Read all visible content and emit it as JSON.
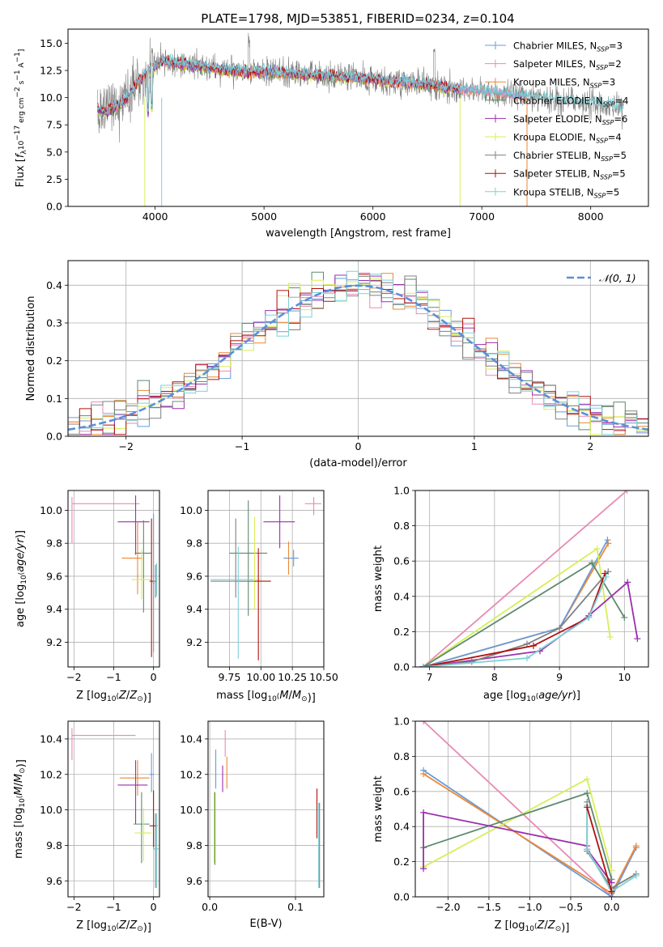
{
  "figure": {
    "title": "PLATE=1798, MJD=53851, FIBERID=0234, z=0.104"
  },
  "colors": {
    "chabrier_miles": "#6a9bd8",
    "salpeter_miles": "#e88ab6",
    "kroupa_miles": "#ee8833",
    "chabrier_elodie": "#5e8a6e",
    "salpeter_elodie": "#9b2fae",
    "kroupa_elodie": "#d7ee5a",
    "chabrier_stelib": "#808080",
    "salpeter_stelib": "#b01010",
    "kroupa_stelib": "#7dd1d6",
    "gauss": "#5b8fd9",
    "grid": "#b0b0b0"
  },
  "chart_data": [
    {
      "id": "spectrum",
      "type": "line",
      "title": "PLATE=1798, MJD=53851, FIBERID=0234, z=0.104",
      "xlabel": "wavelength [Angstrom, rest frame]",
      "ylabel": "Flux [f_λ10^-17 erg cm^-2 s^-1 A^-1]",
      "xlim": [
        3200,
        8530
      ],
      "ylim": [
        0,
        16.3
      ],
      "xticks": [
        4000,
        5000,
        6000,
        7000,
        8000
      ],
      "yticks": [
        0.0,
        2.5,
        5.0,
        7.5,
        10.0,
        12.5,
        15.0
      ],
      "grid": false,
      "legend_position": "right",
      "series": [
        {
          "key": "chabrier_miles",
          "name": "Chabrier MILES, N_SSP=3",
          "marker": "|"
        },
        {
          "key": "salpeter_miles",
          "name": "Salpeter MILES, N_SSP=2",
          "marker": "|"
        },
        {
          "key": "kroupa_miles",
          "name": "Kroupa MILES, N_SSP=3",
          "marker": "|"
        },
        {
          "key": "chabrier_elodie",
          "name": "Chabrier ELODIE, N_SSP=4",
          "marker": "|"
        },
        {
          "key": "salpeter_elodie",
          "name": "Salpeter ELODIE, N_SSP=6",
          "marker": "|"
        },
        {
          "key": "kroupa_elodie",
          "name": "Kroupa ELODIE, N_SSP=4",
          "marker": "|"
        },
        {
          "key": "chabrier_stelib",
          "name": "Chabrier STELIB, N_SSP=5",
          "marker": "|"
        },
        {
          "key": "salpeter_stelib",
          "name": "Salpeter STELIB, N_SSP=5",
          "marker": "|"
        },
        {
          "key": "kroupa_stelib",
          "name": "Kroupa STELIB, N_SSP=5",
          "marker": "|"
        }
      ],
      "spectrum_shape": [
        [
          3470,
          9.0
        ],
        [
          3550,
          8.7
        ],
        [
          3650,
          9.2
        ],
        [
          3750,
          10.0
        ],
        [
          3850,
          11.6
        ],
        [
          3950,
          12.6
        ],
        [
          4050,
          13.3
        ],
        [
          4200,
          13.2
        ],
        [
          4400,
          12.9
        ],
        [
          4600,
          12.6
        ],
        [
          4800,
          12.4
        ],
        [
          5000,
          12.4
        ],
        [
          5300,
          12.2
        ],
        [
          5600,
          12.0
        ],
        [
          5900,
          11.8
        ],
        [
          6200,
          11.5
        ],
        [
          6500,
          11.2
        ],
        [
          6800,
          10.8
        ],
        [
          7100,
          10.5
        ],
        [
          7400,
          10.1
        ],
        [
          7700,
          9.8
        ],
        [
          8000,
          9.5
        ],
        [
          8300,
          9.0
        ]
      ]
    },
    {
      "id": "residuals",
      "type": "histogram",
      "xlabel": "(data-model)/error",
      "ylabel": "Normed distribution",
      "xlim": [
        -2.5,
        2.5
      ],
      "ylim": [
        0,
        0.465
      ],
      "xticks": [
        -2,
        -1,
        0,
        1,
        2
      ],
      "yticks": [
        0.0,
        0.1,
        0.2,
        0.3,
        0.4
      ],
      "grid": true,
      "bin_width": 0.1,
      "gauss_label": "𝒩(0, 1)",
      "legend_position": "top-right"
    },
    {
      "id": "age_vs_Z",
      "type": "errorbar",
      "xlabel": "Z [log10(Z/Z⊙)]",
      "ylabel": "age [log10(age/yr)]",
      "xlim": [
        -2.15,
        0.15
      ],
      "ylim": [
        9.05,
        10.12
      ],
      "xticks": [
        -2,
        -1,
        0
      ],
      "yticks": [
        9.2,
        9.4,
        9.6,
        9.8,
        10.0
      ],
      "grid": true,
      "points": [
        {
          "key": "salpeter_miles",
          "x": -2.05,
          "xerr": [
            0.0,
            1.7
          ],
          "y": 10.04,
          "yerr": [
            0.24,
            0.04
          ]
        },
        {
          "key": "salpeter_elodie",
          "x": -0.45,
          "xerr": [
            0.45,
            0.35
          ],
          "y": 9.93,
          "yerr": [
            0.2,
            0.16
          ]
        },
        {
          "key": "kroupa_miles",
          "x": -0.4,
          "xerr": [
            0.4,
            0.12
          ],
          "y": 9.71,
          "yerr": [
            0.22,
            0.22
          ]
        },
        {
          "key": "chabrier_elodie",
          "x": -0.25,
          "xerr": [
            0.22,
            0.2
          ],
          "y": 9.74,
          "yerr": [
            0.36,
            0.2
          ]
        },
        {
          "key": "kroupa_elodie",
          "x": -0.3,
          "xerr": [
            0.25,
            0.25
          ],
          "y": 9.58,
          "yerr": [
            0.12,
            0.18
          ]
        },
        {
          "key": "salpeter_stelib",
          "x": -0.05,
          "xerr": [
            0.05,
            0.05
          ],
          "y": 9.57,
          "yerr": [
            0.46,
            0.38
          ]
        },
        {
          "key": "chabrier_stelib",
          "x": 0.05,
          "xerr": [
            0.05,
            0.02
          ],
          "y": 9.57,
          "yerr": [
            0.1,
            0.1
          ]
        },
        {
          "key": "kroupa_stelib",
          "x": 0.08,
          "xerr": [
            0.03,
            0.03
          ],
          "y": 9.58,
          "yerr": [
            0.1,
            0.1
          ]
        },
        {
          "key": "chabrier_miles",
          "x": 0.0,
          "xerr": [
            0.02,
            0.02
          ],
          "y": 9.56,
          "yerr": [
            0.42,
            0.42
          ]
        }
      ]
    },
    {
      "id": "age_vs_mass",
      "type": "errorbar",
      "xlabel": "mass [log10(M/M⊙)]",
      "xlim": [
        9.58,
        10.5
      ],
      "ylim": [
        9.05,
        10.12
      ],
      "xticks": [
        9.75,
        10.0,
        10.25,
        10.5
      ],
      "xtick_labels": [
        "9.75",
        "10.00",
        "10.25",
        "10.50"
      ],
      "yticks": [
        9.2,
        9.4,
        9.6,
        9.8,
        10.0
      ],
      "grid": true,
      "points": [
        {
          "key": "salpeter_miles",
          "x": 10.42,
          "xerr": [
            0.07,
            0.06
          ],
          "y": 10.04,
          "yerr": [
            0.07,
            0.04
          ]
        },
        {
          "key": "salpeter_elodie",
          "x": 10.15,
          "xerr": [
            0.13,
            0.12
          ],
          "y": 9.93,
          "yerr": [
            0.16,
            0.16
          ]
        },
        {
          "key": "kroupa_miles",
          "x": 10.22,
          "xerr": [
            0.04,
            0.04
          ],
          "y": 9.71,
          "yerr": [
            0.1,
            0.1
          ]
        },
        {
          "key": "chabrier_miles",
          "x": 10.26,
          "xerr": [
            0.08,
            0.04
          ],
          "y": 9.71,
          "yerr": [
            0.05,
            0.05
          ]
        },
        {
          "key": "chabrier_elodie",
          "x": 9.9,
          "xerr": [
            0.15,
            0.15
          ],
          "y": 9.74,
          "yerr": [
            0.38,
            0.32
          ]
        },
        {
          "key": "kroupa_elodie",
          "x": 9.95,
          "xerr": [
            0.06,
            0.06
          ],
          "y": 9.58,
          "yerr": [
            0.18,
            0.38
          ]
        },
        {
          "key": "salpeter_stelib",
          "x": 9.98,
          "xerr": [
            0.17,
            0.1
          ],
          "y": 9.57,
          "yerr": [
            0.48,
            0.2
          ]
        },
        {
          "key": "chabrier_stelib",
          "x": 9.8,
          "xerr": [
            0.2,
            0.15
          ],
          "y": 9.57,
          "yerr": [
            0.1,
            0.38
          ]
        },
        {
          "key": "kroupa_stelib",
          "x": 9.82,
          "xerr": [
            0.22,
            0.12
          ],
          "y": 9.58,
          "yerr": [
            0.48,
            0.2
          ]
        }
      ]
    },
    {
      "id": "weight_vs_age",
      "type": "line",
      "xlabel": "age [log10(age/yr)]",
      "ylabel": "mass weight",
      "xlim": [
        6.78,
        10.37
      ],
      "ylim": [
        0,
        1.0
      ],
      "xticks": [
        7,
        8,
        9,
        10
      ],
      "yticks": [
        0.0,
        0.2,
        0.4,
        0.6,
        0.8,
        1.0
      ],
      "grid": true,
      "series": [
        {
          "key": "salpeter_miles",
          "x": [
            6.9,
            10.04
          ],
          "y": [
            0.0,
            1.0
          ]
        },
        {
          "key": "kroupa_miles",
          "x": [
            6.9,
            9.0,
            9.75
          ],
          "y": [
            0.0,
            0.22,
            0.7
          ]
        },
        {
          "key": "chabrier_miles",
          "x": [
            6.9,
            9.0,
            9.74
          ],
          "y": [
            0.0,
            0.22,
            0.72
          ]
        },
        {
          "key": "kroupa_elodie",
          "x": [
            6.9,
            9.58,
            9.78
          ],
          "y": [
            0.0,
            0.67,
            0.17
          ]
        },
        {
          "key": "chabrier_elodie",
          "x": [
            6.9,
            9.5,
            10.0
          ],
          "y": [
            0.0,
            0.59,
            0.28
          ]
        },
        {
          "key": "salpeter_elodie",
          "x": [
            6.9,
            8.7,
            9.45,
            10.05,
            10.2
          ],
          "y": [
            0.0,
            0.09,
            0.29,
            0.48,
            0.16
          ]
        },
        {
          "key": "chabrier_stelib",
          "x": [
            6.9,
            7.65,
            8.5,
            9.0,
            9.75
          ],
          "y": [
            0.0,
            0.03,
            0.13,
            0.22,
            0.54
          ]
        },
        {
          "key": "salpeter_stelib",
          "x": [
            6.9,
            8.6,
            9.45,
            9.7
          ],
          "y": [
            0.0,
            0.12,
            0.28,
            0.53
          ]
        },
        {
          "key": "kroupa_stelib",
          "x": [
            6.9,
            8.5,
            9.45,
            9.72
          ],
          "y": [
            0.0,
            0.05,
            0.28,
            0.51
          ]
        }
      ]
    },
    {
      "id": "mass_vs_Z",
      "type": "errorbar",
      "xlabel": "Z [log10(Z/Z⊙)]",
      "ylabel": "mass [log10(M/M⊙)]",
      "xlim": [
        -2.15,
        0.15
      ],
      "ylim": [
        9.51,
        10.5
      ],
      "xticks": [
        -2,
        -1,
        0
      ],
      "yticks": [
        9.6,
        9.8,
        10.0,
        10.2,
        10.4
      ],
      "grid": true,
      "points": [
        {
          "key": "salpeter_miles",
          "x": -2.05,
          "xerr": [
            0.0,
            1.6
          ],
          "y": 10.42,
          "yerr": [
            0.14,
            0.04
          ]
        },
        {
          "key": "kroupa_miles",
          "x": -0.4,
          "xerr": [
            0.45,
            0.3
          ],
          "y": 10.18,
          "yerr": [
            0.1,
            0.1
          ]
        },
        {
          "key": "salpeter_elodie",
          "x": -0.45,
          "xerr": [
            0.45,
            0.3
          ],
          "y": 10.14,
          "yerr": [
            0.22,
            0.14
          ]
        },
        {
          "key": "chabrier_elodie",
          "x": -0.3,
          "xerr": [
            0.2,
            0.2
          ],
          "y": 9.92,
          "yerr": [
            0.22,
            0.18
          ]
        },
        {
          "key": "kroupa_elodie",
          "x": -0.25,
          "xerr": [
            0.22,
            0.2
          ],
          "y": 9.87,
          "yerr": [
            0.16,
            0.14
          ]
        },
        {
          "key": "salpeter_stelib",
          "x": 0.0,
          "xerr": [
            0.1,
            0.1
          ],
          "y": 9.91,
          "yerr": [
            0.12,
            0.2
          ]
        },
        {
          "key": "chabrier_miles",
          "x": -0.05,
          "xerr": [
            0.05,
            0.05
          ],
          "y": 10.2,
          "yerr": [
            0.1,
            0.12
          ]
        },
        {
          "key": "chabrier_stelib",
          "x": 0.05,
          "xerr": [
            0.05,
            0.05
          ],
          "y": 9.78,
          "yerr": [
            0.22,
            0.2
          ]
        },
        {
          "key": "kroupa_stelib",
          "x": 0.08,
          "xerr": [
            0.06,
            0.05
          ],
          "y": 9.78,
          "yerr": [
            0.22,
            0.2
          ]
        }
      ]
    },
    {
      "id": "mass_vs_ebv",
      "type": "errorbar",
      "xlabel": "E(B-V)",
      "xlim": [
        -0.002,
        0.133
      ],
      "ylim": [
        9.51,
        10.5
      ],
      "xticks": [
        0.0,
        0.1
      ],
      "yticks": [
        9.6,
        9.8,
        10.0,
        10.2,
        10.4
      ],
      "grid": true,
      "points": [
        {
          "key": "kroupa_elodie",
          "x": 0.005,
          "y": 9.9,
          "yerr": [
            0.2,
            0.2
          ]
        },
        {
          "key": "chabrier_elodie",
          "x": 0.006,
          "y": 9.9,
          "yerr": [
            0.21,
            0.2
          ]
        },
        {
          "key": "chabrier_miles",
          "x": 0.007,
          "y": 10.22,
          "yerr": [
            0.1,
            0.12
          ]
        },
        {
          "key": "salpeter_elodie",
          "x": 0.015,
          "y": 10.17,
          "yerr": [
            0.07,
            0.08
          ]
        },
        {
          "key": "salpeter_miles",
          "x": 0.018,
          "y": 10.35,
          "yerr": [
            0.05,
            0.1
          ]
        },
        {
          "key": "kroupa_miles",
          "x": 0.02,
          "y": 10.2,
          "yerr": [
            0.08,
            0.1
          ]
        },
        {
          "key": "salpeter_stelib",
          "x": 0.125,
          "y": 9.96,
          "yerr": [
            0.12,
            0.16
          ]
        },
        {
          "key": "kroupa_stelib",
          "x": 0.127,
          "y": 9.8,
          "yerr": [
            0.24,
            0.24
          ]
        },
        {
          "key": "chabrier_stelib",
          "x": 0.128,
          "y": 9.8,
          "yerr": [
            0.24,
            0.24
          ]
        }
      ]
    },
    {
      "id": "weight_vs_Z",
      "type": "line",
      "xlabel": "Z [log10(Z/Z⊙)]",
      "ylabel": "mass weight",
      "xlim": [
        -2.4,
        0.45
      ],
      "ylim": [
        0,
        1.0
      ],
      "xticks": [
        -2.0,
        -1.5,
        -1.0,
        -0.5,
        0.0
      ],
      "yticks": [
        0.0,
        0.2,
        0.4,
        0.6,
        0.8,
        1.0
      ],
      "grid": true,
      "series": [
        {
          "key": "salpeter_miles",
          "x": [
            -2.3,
            0.0
          ],
          "y": [
            1.0,
            0.0
          ]
        },
        {
          "key": "chabrier_miles",
          "x": [
            -2.3,
            0.0,
            0.3
          ],
          "y": [
            0.72,
            0.0,
            0.28
          ]
        },
        {
          "key": "kroupa_miles",
          "x": [
            -2.3,
            0.0,
            0.3
          ],
          "y": [
            0.7,
            0.02,
            0.29
          ]
        },
        {
          "key": "kroupa_elodie",
          "x": [
            -2.3,
            -0.3,
            0.0
          ],
          "y": [
            0.17,
            0.67,
            0.15
          ]
        },
        {
          "key": "chabrier_elodie",
          "x": [
            -2.3,
            -0.3,
            0.0
          ],
          "y": [
            0.28,
            0.59,
            0.1
          ]
        },
        {
          "key": "salpeter_elodie",
          "x": [
            -2.3,
            -2.3,
            -0.3,
            -0.3,
            0.0
          ],
          "y": [
            0.16,
            0.48,
            0.29,
            0.27,
            0.08
          ]
        },
        {
          "key": "chabrier_stelib",
          "x": [
            -0.3,
            -0.3,
            0.0,
            0.3
          ],
          "y": [
            0.54,
            0.26,
            0.05,
            0.13
          ]
        },
        {
          "key": "kroupa_stelib",
          "x": [
            -0.3,
            -0.3,
            0.0,
            0.3
          ],
          "y": [
            0.52,
            0.27,
            0.03,
            0.12
          ]
        },
        {
          "key": "salpeter_stelib",
          "x": [
            -0.3,
            0.0
          ],
          "y": [
            0.51,
            0.03
          ]
        }
      ]
    }
  ]
}
